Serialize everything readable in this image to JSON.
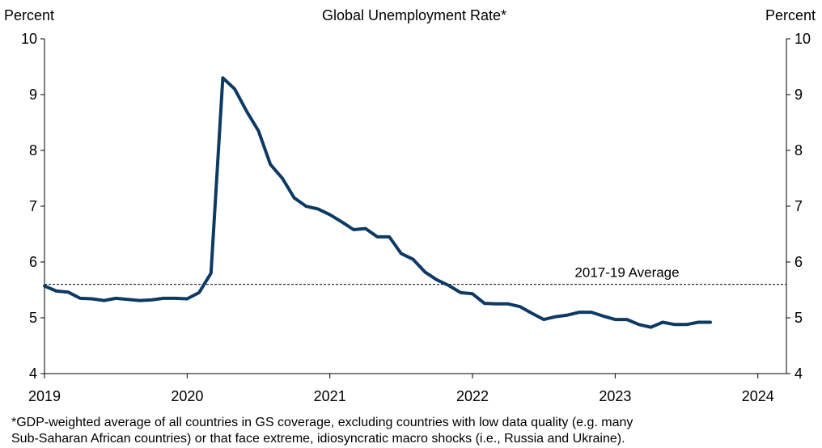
{
  "chart_data": {
    "type": "line",
    "title": "Global Unemployment Rate*",
    "ylabel_left": "Percent",
    "ylabel_right": "Percent",
    "ylim": [
      4,
      10
    ],
    "yticks": [
      "4",
      "5",
      "6",
      "7",
      "8",
      "9",
      "10"
    ],
    "xlim": [
      2019,
      2024.2
    ],
    "xticks": [
      "2019",
      "2020",
      "2021",
      "2022",
      "2023",
      "2024"
    ],
    "grid": false,
    "reference_line": {
      "label": "2017-19 Average",
      "value": 5.6,
      "style": "dashed"
    },
    "series": [
      {
        "color": "#0d3a63",
        "x": [
          2019.0,
          2019.083,
          2019.167,
          2019.25,
          2019.333,
          2019.417,
          2019.5,
          2019.583,
          2019.667,
          2019.75,
          2019.833,
          2019.917,
          2020.0,
          2020.083,
          2020.167,
          2020.25,
          2020.333,
          2020.417,
          2020.5,
          2020.583,
          2020.667,
          2020.75,
          2020.833,
          2020.917,
          2021.0,
          2021.083,
          2021.167,
          2021.25,
          2021.333,
          2021.417,
          2021.5,
          2021.583,
          2021.667,
          2021.75,
          2021.833,
          2021.917,
          2022.0,
          2022.083,
          2022.167,
          2022.25,
          2022.333,
          2022.417,
          2022.5,
          2022.583,
          2022.667,
          2022.75,
          2022.833,
          2022.917,
          2023.0,
          2023.083,
          2023.167,
          2023.25,
          2023.333,
          2023.417,
          2023.5,
          2023.583,
          2023.667
        ],
        "y": [
          5.57,
          5.48,
          5.46,
          5.35,
          5.34,
          5.31,
          5.35,
          5.33,
          5.31,
          5.32,
          5.35,
          5.35,
          5.34,
          5.45,
          5.8,
          9.3,
          9.1,
          8.7,
          8.35,
          7.75,
          7.5,
          7.15,
          7.0,
          6.95,
          6.85,
          6.72,
          6.58,
          6.6,
          6.45,
          6.45,
          6.15,
          6.05,
          5.82,
          5.68,
          5.58,
          5.45,
          5.43,
          5.26,
          5.25,
          5.25,
          5.2,
          5.08,
          4.97,
          5.02,
          5.05,
          5.1,
          5.1,
          5.03,
          4.97,
          4.97,
          4.88,
          4.83,
          4.92,
          4.88,
          4.88,
          4.92,
          4.92
        ]
      }
    ]
  },
  "footnote": {
    "line1": "*GDP-weighted average of all countries in GS coverage, excluding countries with low data quality (e.g. many",
    "line2": "Sub-Saharan African countries) or that face extreme, idiosyncratic macro shocks (i.e., Russia and Ukraine)."
  }
}
